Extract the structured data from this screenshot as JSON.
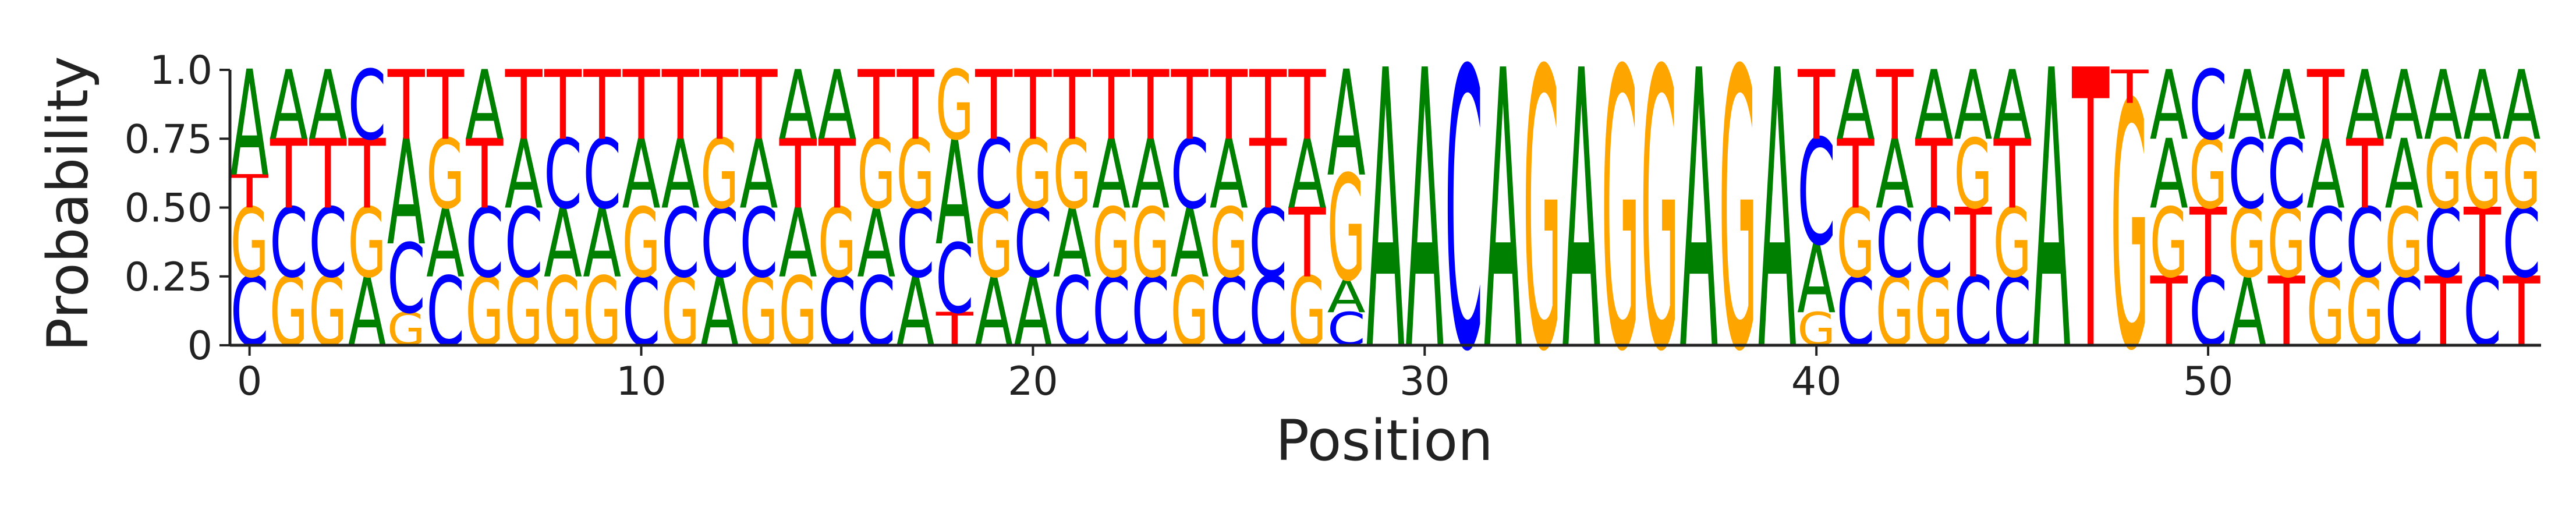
{
  "chart_data": {
    "type": "sequence-logo",
    "title": "",
    "xlabel": "Position",
    "ylabel": "Probability",
    "ylim": [
      0,
      1
    ],
    "yticks": [
      0,
      0.25,
      0.5,
      0.75,
      1.0
    ],
    "ytick_labels": [
      "0",
      "0.25",
      "0.50",
      "0.75",
      "1.0"
    ],
    "xticks": [
      0,
      10,
      20,
      30,
      40,
      50
    ],
    "xlim": [
      -0.5,
      58.5
    ],
    "grid": false,
    "colors": {
      "A": "#008000",
      "C": "#0000ff",
      "G": "#ffa500",
      "T": "#ff0000"
    },
    "positions": [
      {
        "x": 0,
        "stack": [
          [
            "C",
            0.25
          ],
          [
            "G",
            0.25
          ],
          [
            "T",
            0.12
          ],
          [
            "A",
            0.38
          ]
        ]
      },
      {
        "x": 1,
        "stack": [
          [
            "G",
            0.25
          ],
          [
            "C",
            0.25
          ],
          [
            "T",
            0.25
          ],
          [
            "A",
            0.25
          ]
        ]
      },
      {
        "x": 2,
        "stack": [
          [
            "G",
            0.25
          ],
          [
            "C",
            0.25
          ],
          [
            "T",
            0.25
          ],
          [
            "A",
            0.25
          ]
        ]
      },
      {
        "x": 3,
        "stack": [
          [
            "A",
            0.25
          ],
          [
            "G",
            0.25
          ],
          [
            "T",
            0.25
          ],
          [
            "C",
            0.25
          ]
        ]
      },
      {
        "x": 4,
        "stack": [
          [
            "G",
            0.12
          ],
          [
            "C",
            0.25
          ],
          [
            "A",
            0.38
          ],
          [
            "T",
            0.25
          ]
        ]
      },
      {
        "x": 5,
        "stack": [
          [
            "C",
            0.25
          ],
          [
            "A",
            0.25
          ],
          [
            "G",
            0.25
          ],
          [
            "T",
            0.25
          ]
        ]
      },
      {
        "x": 6,
        "stack": [
          [
            "G",
            0.25
          ],
          [
            "C",
            0.25
          ],
          [
            "T",
            0.25
          ],
          [
            "A",
            0.25
          ]
        ]
      },
      {
        "x": 7,
        "stack": [
          [
            "G",
            0.25
          ],
          [
            "C",
            0.25
          ],
          [
            "A",
            0.25
          ],
          [
            "T",
            0.25
          ]
        ]
      },
      {
        "x": 8,
        "stack": [
          [
            "G",
            0.25
          ],
          [
            "A",
            0.25
          ],
          [
            "C",
            0.25
          ],
          [
            "T",
            0.25
          ]
        ]
      },
      {
        "x": 9,
        "stack": [
          [
            "G",
            0.25
          ],
          [
            "A",
            0.25
          ],
          [
            "C",
            0.25
          ],
          [
            "T",
            0.25
          ]
        ]
      },
      {
        "x": 10,
        "stack": [
          [
            "C",
            0.25
          ],
          [
            "G",
            0.25
          ],
          [
            "A",
            0.25
          ],
          [
            "T",
            0.25
          ]
        ]
      },
      {
        "x": 11,
        "stack": [
          [
            "G",
            0.25
          ],
          [
            "C",
            0.25
          ],
          [
            "A",
            0.25
          ],
          [
            "T",
            0.25
          ]
        ]
      },
      {
        "x": 12,
        "stack": [
          [
            "A",
            0.25
          ],
          [
            "C",
            0.25
          ],
          [
            "G",
            0.25
          ],
          [
            "T",
            0.25
          ]
        ]
      },
      {
        "x": 13,
        "stack": [
          [
            "G",
            0.25
          ],
          [
            "C",
            0.25
          ],
          [
            "A",
            0.25
          ],
          [
            "T",
            0.25
          ]
        ]
      },
      {
        "x": 14,
        "stack": [
          [
            "G",
            0.25
          ],
          [
            "A",
            0.25
          ],
          [
            "T",
            0.25
          ],
          [
            "A",
            0.25
          ]
        ]
      },
      {
        "x": 15,
        "stack": [
          [
            "C",
            0.25
          ],
          [
            "G",
            0.25
          ],
          [
            "T",
            0.25
          ],
          [
            "A",
            0.25
          ]
        ]
      },
      {
        "x": 16,
        "stack": [
          [
            "C",
            0.25
          ],
          [
            "A",
            0.25
          ],
          [
            "G",
            0.25
          ],
          [
            "T",
            0.25
          ]
        ]
      },
      {
        "x": 17,
        "stack": [
          [
            "A",
            0.25
          ],
          [
            "C",
            0.25
          ],
          [
            "G",
            0.25
          ],
          [
            "T",
            0.25
          ]
        ]
      },
      {
        "x": 18,
        "stack": [
          [
            "T",
            0.12
          ],
          [
            "C",
            0.25
          ],
          [
            "A",
            0.38
          ],
          [
            "G",
            0.25
          ]
        ]
      },
      {
        "x": 19,
        "stack": [
          [
            "A",
            0.25
          ],
          [
            "G",
            0.25
          ],
          [
            "C",
            0.25
          ],
          [
            "T",
            0.25
          ]
        ]
      },
      {
        "x": 20,
        "stack": [
          [
            "A",
            0.25
          ],
          [
            "C",
            0.25
          ],
          [
            "G",
            0.25
          ],
          [
            "T",
            0.25
          ]
        ]
      },
      {
        "x": 21,
        "stack": [
          [
            "C",
            0.25
          ],
          [
            "A",
            0.25
          ],
          [
            "G",
            0.25
          ],
          [
            "T",
            0.25
          ]
        ]
      },
      {
        "x": 22,
        "stack": [
          [
            "C",
            0.25
          ],
          [
            "G",
            0.25
          ],
          [
            "A",
            0.25
          ],
          [
            "T",
            0.25
          ]
        ]
      },
      {
        "x": 23,
        "stack": [
          [
            "C",
            0.25
          ],
          [
            "G",
            0.25
          ],
          [
            "A",
            0.25
          ],
          [
            "T",
            0.25
          ]
        ]
      },
      {
        "x": 24,
        "stack": [
          [
            "G",
            0.25
          ],
          [
            "A",
            0.25
          ],
          [
            "C",
            0.25
          ],
          [
            "T",
            0.25
          ]
        ]
      },
      {
        "x": 25,
        "stack": [
          [
            "C",
            0.25
          ],
          [
            "G",
            0.25
          ],
          [
            "A",
            0.25
          ],
          [
            "T",
            0.25
          ]
        ]
      },
      {
        "x": 26,
        "stack": [
          [
            "C",
            0.25
          ],
          [
            "C",
            0.25
          ],
          [
            "T",
            0.25
          ],
          [
            "T",
            0.25
          ]
        ]
      },
      {
        "x": 27,
        "stack": [
          [
            "G",
            0.25
          ],
          [
            "T",
            0.25
          ],
          [
            "A",
            0.25
          ],
          [
            "T",
            0.25
          ]
        ]
      },
      {
        "x": 28,
        "stack": [
          [
            "C",
            0.12
          ],
          [
            "A",
            0.12
          ],
          [
            "G",
            0.38
          ],
          [
            "A",
            0.38
          ]
        ]
      },
      {
        "x": 29,
        "stack": [
          [
            "A",
            1.0
          ]
        ]
      },
      {
        "x": 30,
        "stack": [
          [
            "A",
            1.0
          ]
        ]
      },
      {
        "x": 31,
        "stack": [
          [
            "C",
            1.0
          ]
        ]
      },
      {
        "x": 32,
        "stack": [
          [
            "A",
            1.0
          ]
        ]
      },
      {
        "x": 33,
        "stack": [
          [
            "G",
            1.0
          ]
        ]
      },
      {
        "x": 34,
        "stack": [
          [
            "A",
            1.0
          ]
        ]
      },
      {
        "x": 35,
        "stack": [
          [
            "G",
            1.0
          ]
        ]
      },
      {
        "x": 36,
        "stack": [
          [
            "G",
            1.0
          ]
        ]
      },
      {
        "x": 37,
        "stack": [
          [
            "A",
            1.0
          ]
        ]
      },
      {
        "x": 38,
        "stack": [
          [
            "G",
            1.0
          ]
        ]
      },
      {
        "x": 39,
        "stack": [
          [
            "A",
            1.0
          ]
        ]
      },
      {
        "x": 40,
        "stack": [
          [
            "G",
            0.12
          ],
          [
            "A",
            0.25
          ],
          [
            "C",
            0.38
          ],
          [
            "T",
            0.25
          ]
        ]
      },
      {
        "x": 41,
        "stack": [
          [
            "C",
            0.25
          ],
          [
            "G",
            0.25
          ],
          [
            "T",
            0.25
          ],
          [
            "A",
            0.25
          ]
        ]
      },
      {
        "x": 42,
        "stack": [
          [
            "G",
            0.25
          ],
          [
            "C",
            0.25
          ],
          [
            "A",
            0.25
          ],
          [
            "T",
            0.25
          ]
        ]
      },
      {
        "x": 43,
        "stack": [
          [
            "G",
            0.25
          ],
          [
            "C",
            0.25
          ],
          [
            "T",
            0.25
          ],
          [
            "A",
            0.25
          ]
        ]
      },
      {
        "x": 44,
        "stack": [
          [
            "C",
            0.25
          ],
          [
            "T",
            0.25
          ],
          [
            "G",
            0.25
          ],
          [
            "A",
            0.25
          ]
        ]
      },
      {
        "x": 45,
        "stack": [
          [
            "C",
            0.25
          ],
          [
            "G",
            0.25
          ],
          [
            "T",
            0.25
          ],
          [
            "A",
            0.25
          ]
        ]
      },
      {
        "x": 46,
        "stack": [
          [
            "A",
            1.0
          ]
        ]
      },
      {
        "x": 47,
        "stack": [
          [
            "T",
            1.0
          ]
        ]
      },
      {
        "x": 48,
        "stack": [
          [
            "G",
            0.88
          ],
          [
            "T",
            0.12
          ]
        ]
      },
      {
        "x": 49,
        "stack": [
          [
            "T",
            0.25
          ],
          [
            "G",
            0.25
          ],
          [
            "A",
            0.25
          ],
          [
            "A",
            0.25
          ]
        ]
      },
      {
        "x": 50,
        "stack": [
          [
            "C",
            0.25
          ],
          [
            "T",
            0.25
          ],
          [
            "G",
            0.25
          ],
          [
            "C",
            0.25
          ]
        ]
      },
      {
        "x": 51,
        "stack": [
          [
            "A",
            0.25
          ],
          [
            "G",
            0.25
          ],
          [
            "C",
            0.25
          ],
          [
            "A",
            0.25
          ]
        ]
      },
      {
        "x": 52,
        "stack": [
          [
            "T",
            0.25
          ],
          [
            "G",
            0.25
          ],
          [
            "C",
            0.25
          ],
          [
            "A",
            0.25
          ]
        ]
      },
      {
        "x": 53,
        "stack": [
          [
            "G",
            0.25
          ],
          [
            "C",
            0.25
          ],
          [
            "A",
            0.25
          ],
          [
            "T",
            0.25
          ]
        ]
      },
      {
        "x": 54,
        "stack": [
          [
            "G",
            0.25
          ],
          [
            "C",
            0.25
          ],
          [
            "T",
            0.25
          ],
          [
            "A",
            0.25
          ]
        ]
      },
      {
        "x": 55,
        "stack": [
          [
            "C",
            0.25
          ],
          [
            "G",
            0.25
          ],
          [
            "A",
            0.25
          ],
          [
            "A",
            0.25
          ]
        ]
      },
      {
        "x": 56,
        "stack": [
          [
            "T",
            0.25
          ],
          [
            "C",
            0.25
          ],
          [
            "G",
            0.25
          ],
          [
            "A",
            0.25
          ]
        ]
      },
      {
        "x": 57,
        "stack": [
          [
            "C",
            0.25
          ],
          [
            "T",
            0.25
          ],
          [
            "G",
            0.25
          ],
          [
            "A",
            0.25
          ]
        ]
      },
      {
        "x": 58,
        "stack": [
          [
            "T",
            0.25
          ],
          [
            "C",
            0.25
          ],
          [
            "G",
            0.25
          ],
          [
            "A",
            0.25
          ]
        ]
      }
    ]
  }
}
